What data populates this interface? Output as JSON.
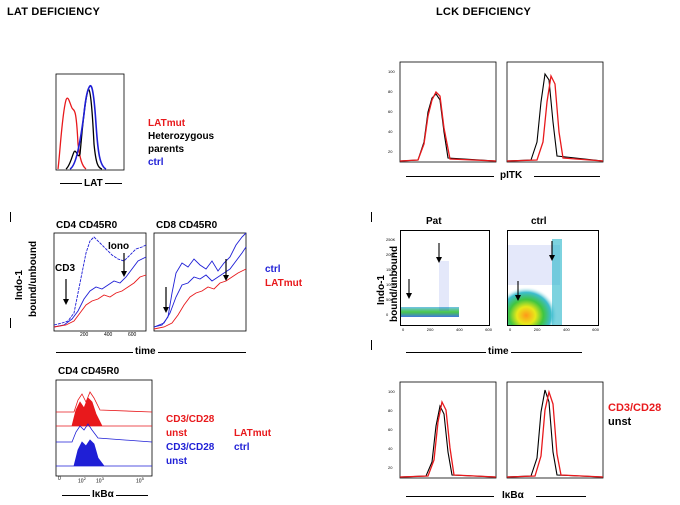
{
  "left": {
    "title": "LAT DEFICIENCY",
    "hist_xlabel": "LAT",
    "legend1": {
      "latmut": "LATmut",
      "het1": "Heterozygous",
      "het2": "parents",
      "ctrl": "ctrl"
    },
    "ca_panel1_title": "CD4 CD45R0",
    "ca_panel2_title": "CD8 CD45R0",
    "cd3_label": "CD3",
    "iono_label": "Iono",
    "ylabel1": "Indo-1",
    "ylabel2": "bound/unbound",
    "ca_xlabel": "time",
    "ca_xticks": [
      "200",
      "400",
      "600"
    ],
    "legend2": {
      "ctrl": "ctrl",
      "latmut": "LATmut"
    },
    "ikb_title": "CD4 CD45R0",
    "ikb_xlabel": "IκBα",
    "ikb_xticks": [
      "0",
      "10",
      "10",
      "10"
    ],
    "ikb_xtick_exps": [
      "2",
      "3",
      "5"
    ],
    "legend3": {
      "red_stim": "CD3/CD28",
      "red_unst": "unst",
      "blue_stim": "CD3/CD28",
      "blue_unst": "unst",
      "latmut": "LATmut",
      "ctrl": "ctrl"
    }
  },
  "right": {
    "title": "LCK DEFICIENCY",
    "pitk_xlabel": "pITK",
    "hist_yticks": [
      "100",
      "80",
      "60",
      "40",
      "20",
      "0"
    ],
    "pat_label": "Pat",
    "ctrl_label": "ctrl",
    "ylabel1": "Indo-1",
    "ylabel2": "bound/unbound",
    "scatter_yticks": [
      "250K",
      "200K",
      "150K",
      "100K",
      "50K",
      "0"
    ],
    "scatter_xticks": [
      "0",
      "200",
      "400",
      "600"
    ],
    "time_label": "time",
    "ikb_xlabel": "IκBα",
    "legend": {
      "stim": "CD3/CD28",
      "unst": "unst"
    }
  },
  "colors": {
    "red": "#e8191c",
    "blue": "#1f1fd6",
    "black": "#000000"
  }
}
